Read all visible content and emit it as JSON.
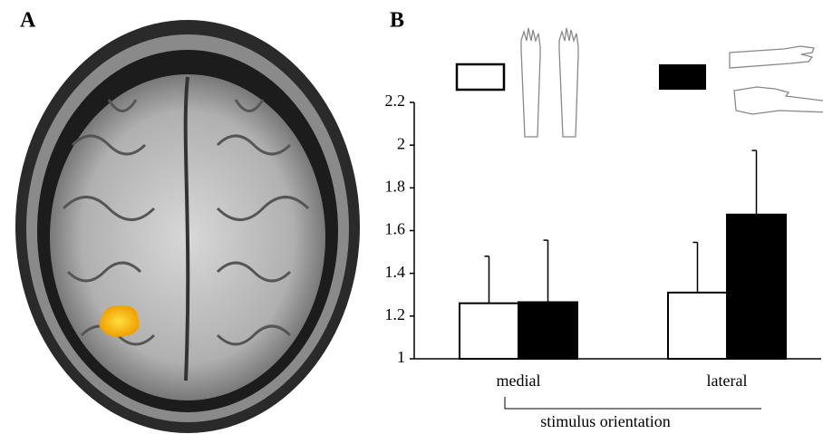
{
  "panels": [
    "A",
    "B"
  ],
  "chart_data": {
    "type": "bar",
    "x_label": "stimulus orientation",
    "categories": [
      "medial",
      "lateral"
    ],
    "series": [
      {
        "color": "#ffffff",
        "values": [
          1.26,
          1.31
        ],
        "errors": [
          0.22,
          0.235
        ]
      },
      {
        "color": "#000000",
        "values": [
          1.265,
          1.675
        ],
        "errors": [
          0.29,
          0.3
        ]
      }
    ],
    "ylim": [
      1,
      2.2
    ],
    "yticks": [
      1,
      1.2,
      1.4,
      1.6,
      1.8,
      2,
      2.2
    ],
    "grid": false
  }
}
